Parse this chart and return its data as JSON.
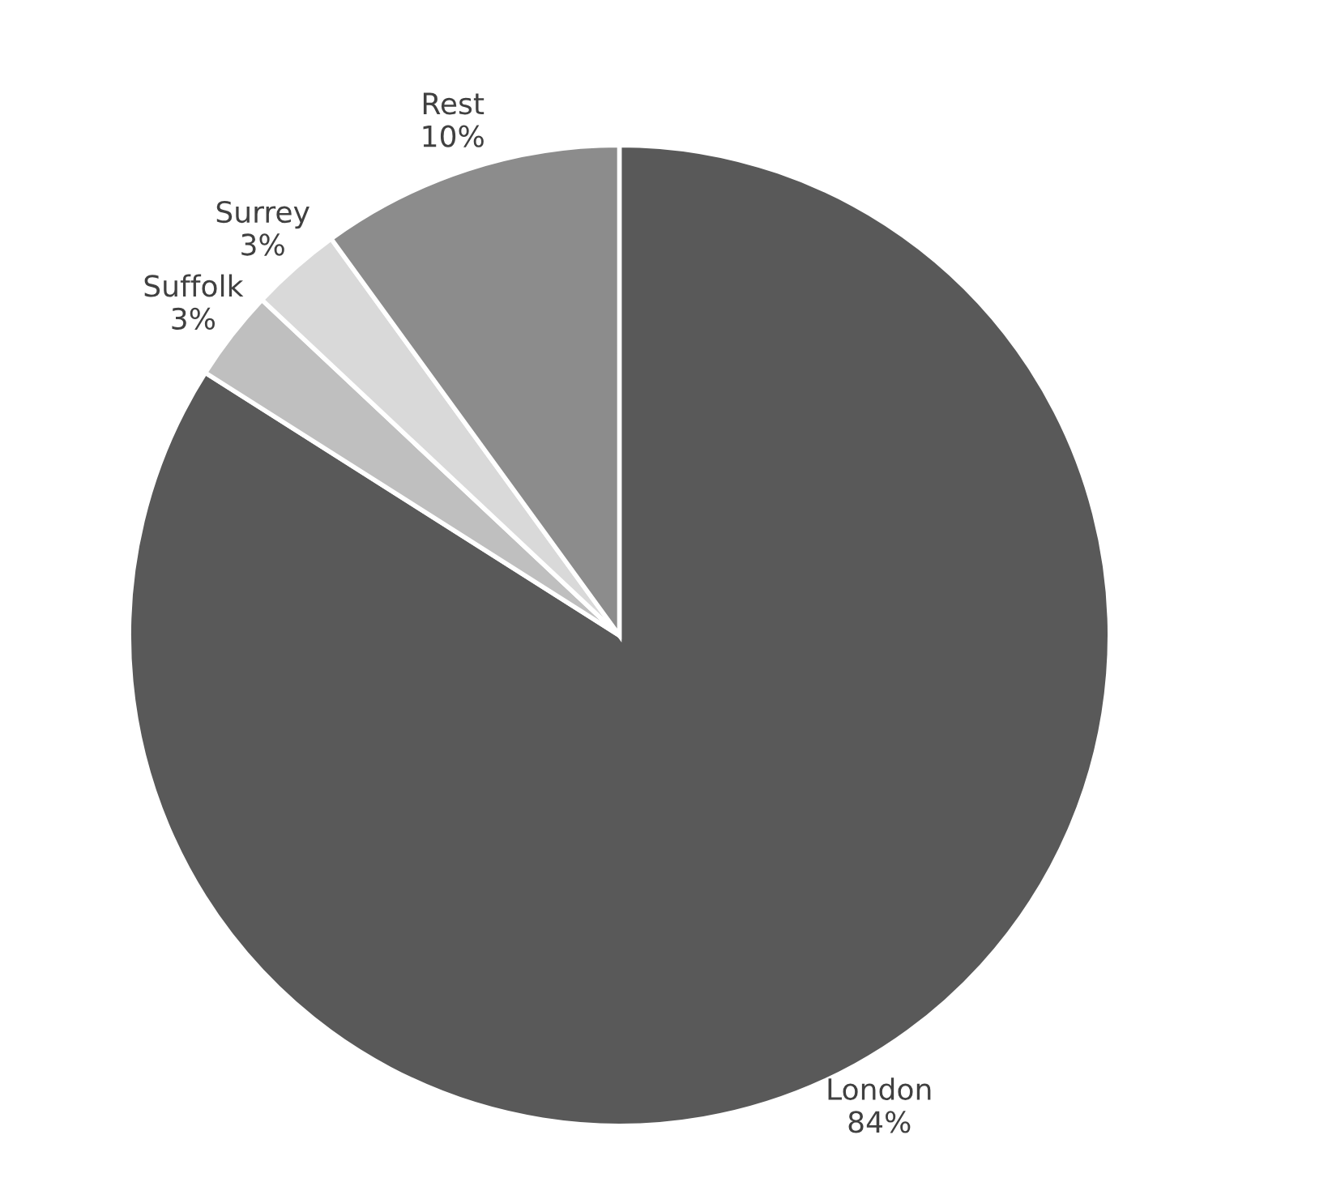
{
  "chart_data": {
    "type": "pie",
    "categories": [
      "London",
      "Suffolk",
      "Surrey",
      "Rest"
    ],
    "values": [
      84,
      3,
      3,
      10
    ],
    "value_labels": [
      "84%",
      "3%",
      "3%",
      "10%"
    ],
    "colors": [
      "#595959",
      "#bfbfbf",
      "#d9d9d9",
      "#8c8c8c"
    ],
    "legend": false
  }
}
